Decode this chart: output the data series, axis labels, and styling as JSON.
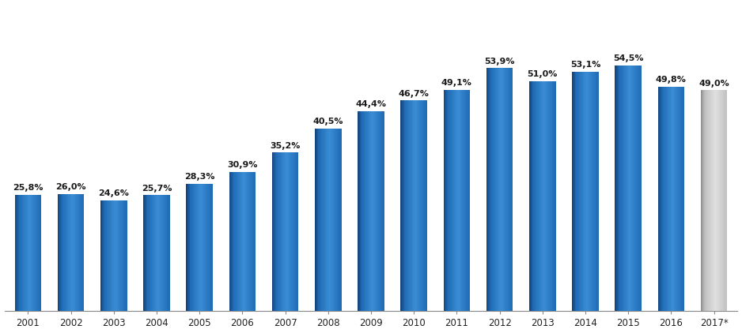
{
  "years": [
    "2001",
    "2002",
    "2003",
    "2004",
    "2005",
    "2006",
    "2007",
    "2008",
    "2009",
    "2010",
    "2011",
    "2012",
    "2013",
    "2014",
    "2015",
    "2016",
    "2017*"
  ],
  "values": [
    25.8,
    26.0,
    24.6,
    25.7,
    28.3,
    30.9,
    35.2,
    40.5,
    44.4,
    46.7,
    49.1,
    53.9,
    51.0,
    53.1,
    54.5,
    49.8,
    49.0
  ],
  "labels": [
    "25,8%",
    "26,0%",
    "24,6%",
    "25,7%",
    "28,3%",
    "30,9%",
    "35,2%",
    "40,5%",
    "44,4%",
    "46,7%",
    "49,1%",
    "53,9%",
    "51,0%",
    "53,1%",
    "54,5%",
    "49,8%",
    "49,0%"
  ],
  "bar_colors_blue": [
    "#1B5EA0",
    "#1B5EA0",
    "#1B5EA0",
    "#1B5EA0",
    "#1B5EA0",
    "#1B5EA0",
    "#1B5EA0",
    "#1B5EA0",
    "#1B5EA0",
    "#1B5EA0",
    "#1B5EA0",
    "#1B5EA0",
    "#1B5EA0",
    "#1B5EA0",
    "#1B5EA0",
    "#1B5EA0"
  ],
  "bar_color_gray": "#BEBEBE",
  "bar_main_blue": "#1F6BB5",
  "bar_left_blue": "#14437A",
  "bar_right_blue": "#3A8DD4",
  "bar_main_gray": "#C0C0C0",
  "bar_left_gray": "#909090",
  "bar_right_gray": "#E0E0E0",
  "background_color": "#FFFFFF",
  "label_fontsize": 8.0,
  "tick_fontsize": 8.5,
  "ylim": [
    0,
    68
  ],
  "bar_width": 0.62,
  "label_color": "#1a1a1a"
}
